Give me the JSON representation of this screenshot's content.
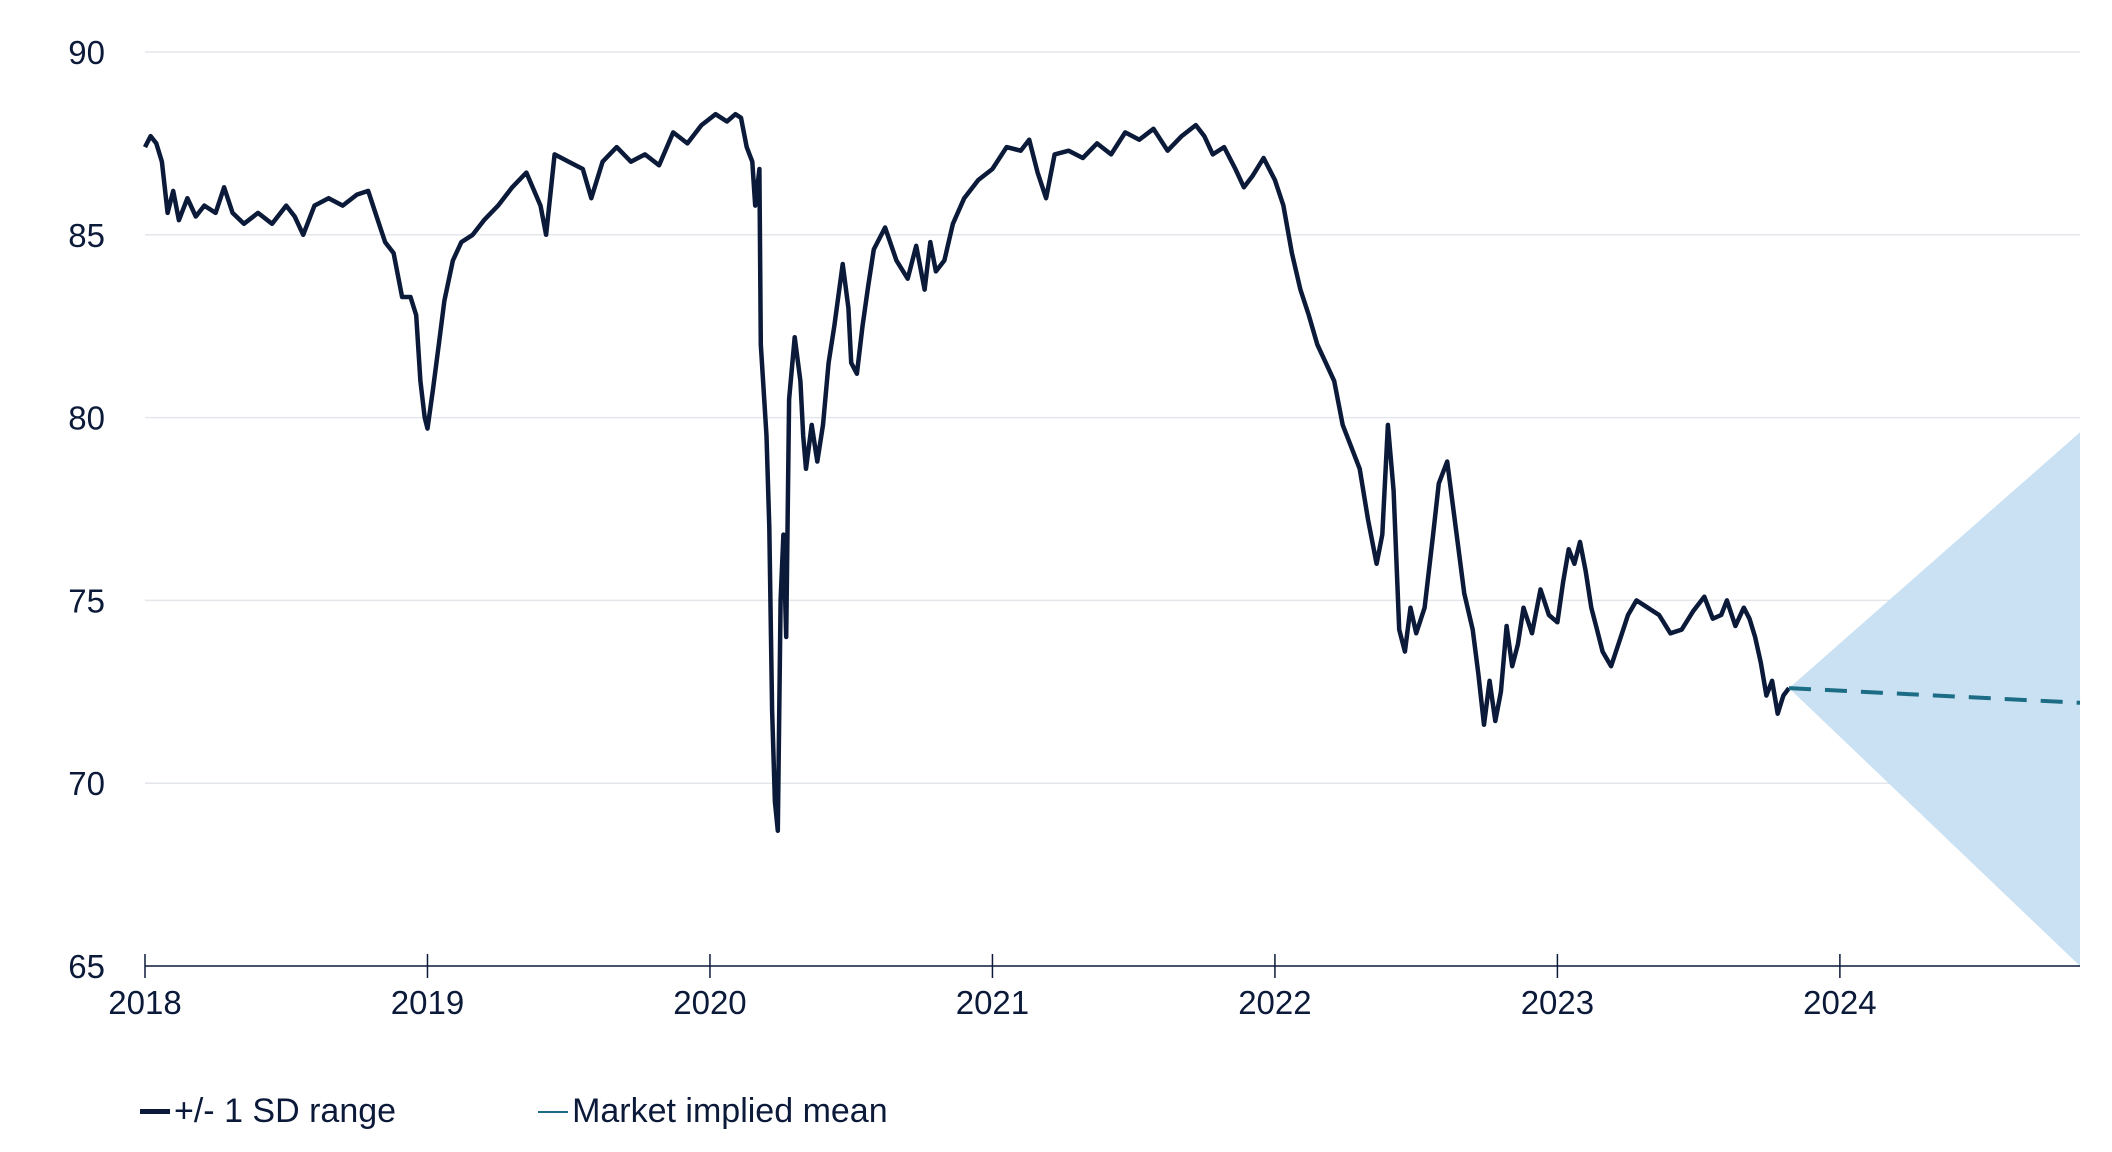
{
  "chart_data": {
    "type": "line",
    "title": "",
    "xlabel": "",
    "ylabel": "",
    "ylim": [
      65,
      90
    ],
    "y_ticks": [
      "90",
      "85",
      "80",
      "75",
      "70",
      "65"
    ],
    "x_ticks": [
      "2018",
      "2019",
      "2020",
      "2021",
      "2022",
      "2023",
      "2024"
    ],
    "grid": "horizontal",
    "legend_position": "bottom-left",
    "colors": {
      "price": "#0c1a3a",
      "mean": "#1b6c84",
      "band": "#c9e1f3",
      "grid": "#e3e6ea",
      "axis": "#0c1a3a"
    },
    "legend": [
      {
        "label": "+/- 1 SD range",
        "style": "thick-solid"
      },
      {
        "label": "Market implied mean",
        "style": "thin-solid"
      }
    ],
    "series": [
      {
        "style": "solid",
        "points": [
          [
            2018.0,
            87.4
          ],
          [
            2018.02,
            87.7
          ],
          [
            2018.04,
            87.5
          ],
          [
            2018.06,
            87.0
          ],
          [
            2018.08,
            85.6
          ],
          [
            2018.1,
            86.2
          ],
          [
            2018.12,
            85.4
          ],
          [
            2018.15,
            86.0
          ],
          [
            2018.18,
            85.5
          ],
          [
            2018.21,
            85.8
          ],
          [
            2018.25,
            85.6
          ],
          [
            2018.28,
            86.3
          ],
          [
            2018.31,
            85.6
          ],
          [
            2018.35,
            85.3
          ],
          [
            2018.4,
            85.6
          ],
          [
            2018.45,
            85.3
          ],
          [
            2018.5,
            85.8
          ],
          [
            2018.53,
            85.5
          ],
          [
            2018.56,
            85.0
          ],
          [
            2018.6,
            85.8
          ],
          [
            2018.65,
            86.0
          ],
          [
            2018.7,
            85.8
          ],
          [
            2018.75,
            86.1
          ],
          [
            2018.79,
            86.2
          ],
          [
            2018.82,
            85.5
          ],
          [
            2018.85,
            84.8
          ],
          [
            2018.88,
            84.5
          ],
          [
            2018.91,
            83.3
          ],
          [
            2018.94,
            83.3
          ],
          [
            2018.96,
            82.8
          ],
          [
            2018.975,
            81.0
          ],
          [
            2018.99,
            80.0
          ],
          [
            2019.0,
            79.7
          ],
          [
            2019.02,
            80.8
          ],
          [
            2019.04,
            82.0
          ],
          [
            2019.06,
            83.2
          ],
          [
            2019.09,
            84.3
          ],
          [
            2019.12,
            84.8
          ],
          [
            2019.16,
            85.0
          ],
          [
            2019.2,
            85.4
          ],
          [
            2019.25,
            85.8
          ],
          [
            2019.3,
            86.3
          ],
          [
            2019.35,
            86.7
          ],
          [
            2019.4,
            85.8
          ],
          [
            2019.42,
            85.0
          ],
          [
            2019.45,
            87.2
          ],
          [
            2019.5,
            87.0
          ],
          [
            2019.55,
            86.8
          ],
          [
            2019.58,
            86.0
          ],
          [
            2019.62,
            87.0
          ],
          [
            2019.67,
            87.4
          ],
          [
            2019.72,
            87.0
          ],
          [
            2019.77,
            87.2
          ],
          [
            2019.82,
            86.9
          ],
          [
            2019.87,
            87.8
          ],
          [
            2019.92,
            87.5
          ],
          [
            2019.97,
            88.0
          ],
          [
            2020.02,
            88.3
          ],
          [
            2020.06,
            88.1
          ],
          [
            2020.09,
            88.3
          ],
          [
            2020.11,
            88.2
          ],
          [
            2020.13,
            87.4
          ],
          [
            2020.15,
            87.0
          ],
          [
            2020.16,
            85.8
          ],
          [
            2020.175,
            86.8
          ],
          [
            2020.18,
            82.0
          ],
          [
            2020.2,
            79.5
          ],
          [
            2020.21,
            77.0
          ],
          [
            2020.22,
            72.0
          ],
          [
            2020.23,
            69.5
          ],
          [
            2020.24,
            68.7
          ],
          [
            2020.25,
            75.0
          ],
          [
            2020.26,
            76.8
          ],
          [
            2020.27,
            74.0
          ],
          [
            2020.28,
            80.5
          ],
          [
            2020.3,
            82.2
          ],
          [
            2020.32,
            81.0
          ],
          [
            2020.33,
            79.5
          ],
          [
            2020.34,
            78.6
          ],
          [
            2020.36,
            79.8
          ],
          [
            2020.38,
            78.8
          ],
          [
            2020.4,
            79.8
          ],
          [
            2020.42,
            81.5
          ],
          [
            2020.44,
            82.5
          ],
          [
            2020.47,
            84.2
          ],
          [
            2020.49,
            83.0
          ],
          [
            2020.5,
            81.5
          ],
          [
            2020.52,
            81.2
          ],
          [
            2020.54,
            82.5
          ],
          [
            2020.56,
            83.6
          ],
          [
            2020.58,
            84.6
          ],
          [
            2020.62,
            85.2
          ],
          [
            2020.66,
            84.3
          ],
          [
            2020.7,
            83.8
          ],
          [
            2020.73,
            84.7
          ],
          [
            2020.76,
            83.5
          ],
          [
            2020.78,
            84.8
          ],
          [
            2020.8,
            84.0
          ],
          [
            2020.83,
            84.3
          ],
          [
            2020.86,
            85.3
          ],
          [
            2020.9,
            86.0
          ],
          [
            2020.95,
            86.5
          ],
          [
            2021.0,
            86.8
          ],
          [
            2021.05,
            87.4
          ],
          [
            2021.1,
            87.3
          ],
          [
            2021.13,
            87.6
          ],
          [
            2021.16,
            86.7
          ],
          [
            2021.19,
            86.0
          ],
          [
            2021.22,
            87.2
          ],
          [
            2021.27,
            87.3
          ],
          [
            2021.32,
            87.1
          ],
          [
            2021.37,
            87.5
          ],
          [
            2021.42,
            87.2
          ],
          [
            2021.47,
            87.8
          ],
          [
            2021.52,
            87.6
          ],
          [
            2021.57,
            87.9
          ],
          [
            2021.62,
            87.3
          ],
          [
            2021.67,
            87.7
          ],
          [
            2021.72,
            88.0
          ],
          [
            2021.75,
            87.7
          ],
          [
            2021.78,
            87.2
          ],
          [
            2021.82,
            87.4
          ],
          [
            2021.86,
            86.8
          ],
          [
            2021.89,
            86.3
          ],
          [
            2021.92,
            86.6
          ],
          [
            2021.96,
            87.1
          ],
          [
            2022.0,
            86.5
          ],
          [
            2022.03,
            85.8
          ],
          [
            2022.06,
            84.5
          ],
          [
            2022.09,
            83.5
          ],
          [
            2022.12,
            82.8
          ],
          [
            2022.15,
            82.0
          ],
          [
            2022.18,
            81.5
          ],
          [
            2022.21,
            81.0
          ],
          [
            2022.24,
            79.8
          ],
          [
            2022.27,
            79.2
          ],
          [
            2022.3,
            78.6
          ],
          [
            2022.33,
            77.2
          ],
          [
            2022.36,
            76.0
          ],
          [
            2022.38,
            76.8
          ],
          [
            2022.4,
            79.8
          ],
          [
            2022.42,
            78.0
          ],
          [
            2022.44,
            74.2
          ],
          [
            2022.46,
            73.6
          ],
          [
            2022.48,
            74.8
          ],
          [
            2022.5,
            74.1
          ],
          [
            2022.53,
            74.8
          ],
          [
            2022.56,
            76.8
          ],
          [
            2022.58,
            78.2
          ],
          [
            2022.61,
            78.8
          ],
          [
            2022.64,
            77.0
          ],
          [
            2022.67,
            75.2
          ],
          [
            2022.7,
            74.2
          ],
          [
            2022.72,
            73.0
          ],
          [
            2022.74,
            71.6
          ],
          [
            2022.76,
            72.8
          ],
          [
            2022.78,
            71.7
          ],
          [
            2022.8,
            72.5
          ],
          [
            2022.82,
            74.3
          ],
          [
            2022.84,
            73.2
          ],
          [
            2022.86,
            73.8
          ],
          [
            2022.88,
            74.8
          ],
          [
            2022.91,
            74.1
          ],
          [
            2022.94,
            75.3
          ],
          [
            2022.97,
            74.6
          ],
          [
            2023.0,
            74.4
          ],
          [
            2023.02,
            75.5
          ],
          [
            2023.04,
            76.4
          ],
          [
            2023.06,
            76.0
          ],
          [
            2023.08,
            76.6
          ],
          [
            2023.1,
            75.8
          ],
          [
            2023.12,
            74.8
          ],
          [
            2023.14,
            74.2
          ],
          [
            2023.16,
            73.6
          ],
          [
            2023.19,
            73.2
          ],
          [
            2023.22,
            73.9
          ],
          [
            2023.25,
            74.6
          ],
          [
            2023.28,
            75.0
          ],
          [
            2023.32,
            74.8
          ],
          [
            2023.36,
            74.6
          ],
          [
            2023.4,
            74.1
          ],
          [
            2023.44,
            74.2
          ],
          [
            2023.48,
            74.7
          ],
          [
            2023.52,
            75.1
          ],
          [
            2023.55,
            74.5
          ],
          [
            2023.58,
            74.6
          ],
          [
            2023.6,
            75.0
          ],
          [
            2023.63,
            74.3
          ],
          [
            2023.66,
            74.8
          ],
          [
            2023.68,
            74.5
          ],
          [
            2023.7,
            74.0
          ],
          [
            2023.72,
            73.3
          ],
          [
            2023.74,
            72.4
          ],
          [
            2023.76,
            72.8
          ],
          [
            2023.78,
            71.9
          ],
          [
            2023.8,
            72.4
          ],
          [
            2023.82,
            72.6
          ]
        ]
      },
      {
        "style": "dashed",
        "points": [
          [
            2023.82,
            72.6
          ],
          [
            2024.85,
            72.2
          ]
        ]
      }
    ],
    "band": {
      "x_start": 2023.82,
      "x_end": 2024.85,
      "center_start": 72.6,
      "upper_end": 79.6,
      "lower_end": 65.0
    }
  }
}
